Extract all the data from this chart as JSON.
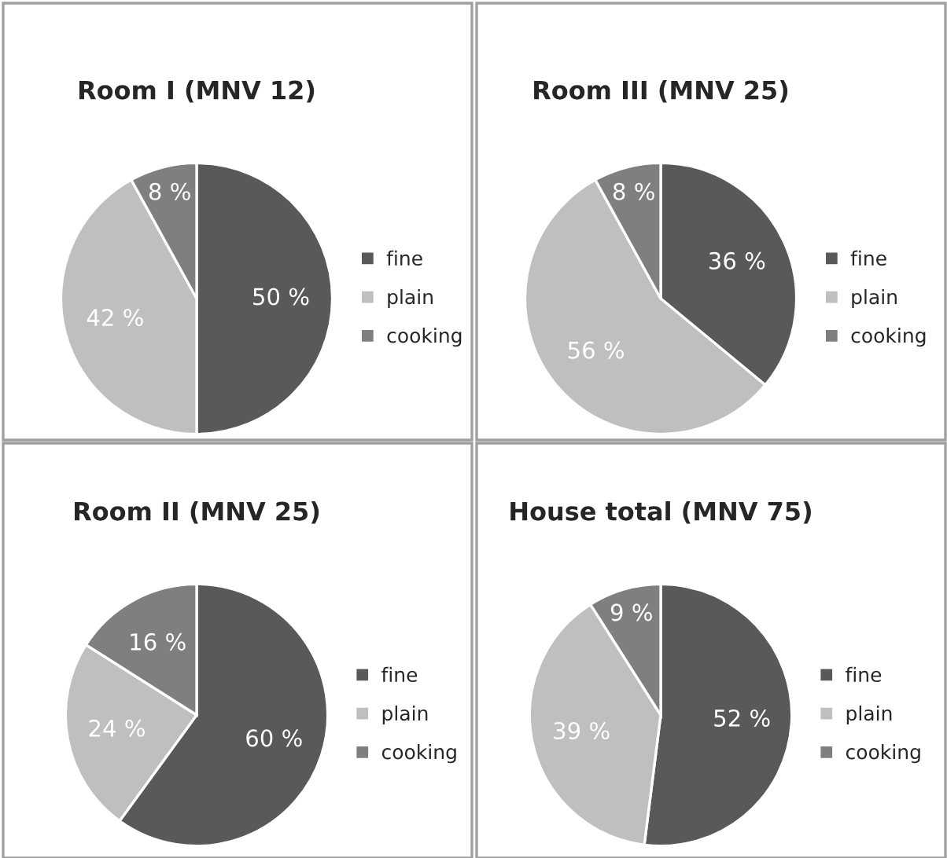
{
  "chart_data": [
    {
      "type": "pie",
      "title": "Room I (MNV 12)",
      "categories": [
        "fine",
        "plain",
        "cooking"
      ],
      "values": [
        50,
        42,
        8
      ],
      "value_labels": [
        "50 %",
        "42 %",
        "8 %"
      ],
      "colors": [
        "#595959",
        "#bfbfbf",
        "#7f7f7f"
      ],
      "legend": "right"
    },
    {
      "type": "pie",
      "title": "Room III (MNV 25)",
      "categories": [
        "fine",
        "plain",
        "cooking"
      ],
      "values": [
        36,
        56,
        8
      ],
      "value_labels": [
        "36 %",
        "56 %",
        "8 %"
      ],
      "colors": [
        "#595959",
        "#bfbfbf",
        "#7f7f7f"
      ],
      "legend": "right"
    },
    {
      "type": "pie",
      "title": "Room II (MNV 25)",
      "categories": [
        "fine",
        "plain",
        "cooking"
      ],
      "values": [
        60,
        24,
        16
      ],
      "value_labels": [
        "60 %",
        "24 %",
        "16 %"
      ],
      "colors": [
        "#595959",
        "#bfbfbf",
        "#7f7f7f"
      ],
      "legend": "right"
    },
    {
      "type": "pie",
      "title": "House total (MNV 75)",
      "categories": [
        "fine",
        "plain",
        "cooking"
      ],
      "values": [
        52,
        39,
        9
      ],
      "value_labels": [
        "52 %",
        "39 %",
        "9 %"
      ],
      "colors": [
        "#595959",
        "#bfbfbf",
        "#7f7f7f"
      ],
      "legend": "right"
    }
  ]
}
